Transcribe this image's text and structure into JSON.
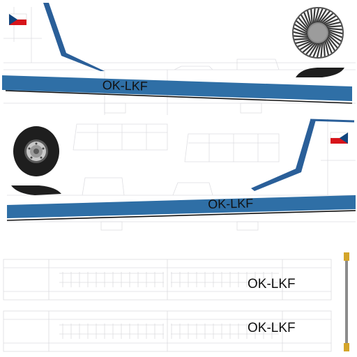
{
  "texture": {
    "registration_top": "OK-LKF",
    "registration_middle": "OK-LKF",
    "registration_bottom_1": "OK-LKF",
    "registration_bottom_2": "OK-LKF"
  },
  "colors": {
    "stripe_blue": "#2f6fa6",
    "fin_blue": "#2a5f99",
    "flag_red": "#d7141a",
    "flag_white": "#ffffff",
    "flag_blue": "#11457e",
    "rotor_dark": "#3a3a3a",
    "wheel_black": "#1e1e1e",
    "hub_gray": "#b8b8b8",
    "panel_line": "#d8d8dc",
    "rod_gold": "#d4a52a",
    "rod_gray": "#8c8c8c"
  },
  "icons": {
    "top_flag": "czech-flag-icon",
    "middle_flag": "czech-flag-icon",
    "rotor": "engine-fan-icon",
    "wheel": "landing-wheel-icon"
  }
}
